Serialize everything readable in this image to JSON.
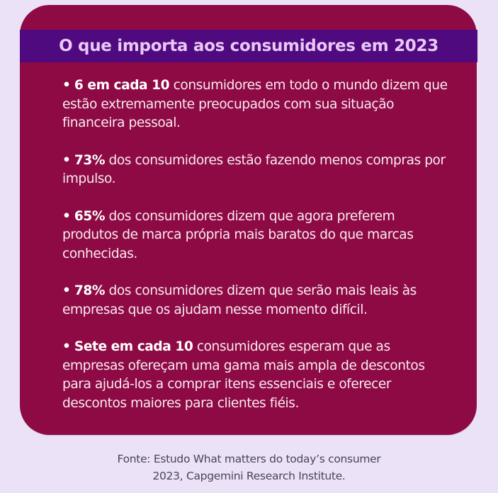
{
  "colors": {
    "page_background": "#ece2f8",
    "card_background": "#8e0a44",
    "banner_background": "#4f0a80",
    "banner_text": "#e9c8f5",
    "body_text": "#f8eaf2",
    "footer_text": "#4a4554"
  },
  "card": {
    "title": "O que importa aos consumidores em 2023",
    "bullet_glyph": "•",
    "bullets": [
      {
        "highlight": "6 em cada 10",
        "text": " consumidores em todo o mundo dizem que estão extremamente preocupados com sua situação financeira pessoal."
      },
      {
        "highlight": "73%",
        "text": " dos consumidores estão fazendo menos compras por impulso."
      },
      {
        "highlight": "65%",
        "text": " dos consumidores dizem que agora preferem produtos de marca própria mais baratos do que marcas conhecidas."
      },
      {
        "highlight": "78%",
        "text": " dos consumidores dizem que serão mais leais às empresas que os ajudam nesse momento difícil."
      },
      {
        "highlight": "Sete em cada 10",
        "text": " consumidores esperam que as empresas ofereçam uma gama mais ampla de descontos para ajudá-los a comprar itens essenciais e oferecer descontos maiores para clientes fiéis."
      }
    ]
  },
  "footer": {
    "line1": "Fonte: Estudo What matters do today’s consumer",
    "line2": "2023, Capgemini Research Institute."
  }
}
